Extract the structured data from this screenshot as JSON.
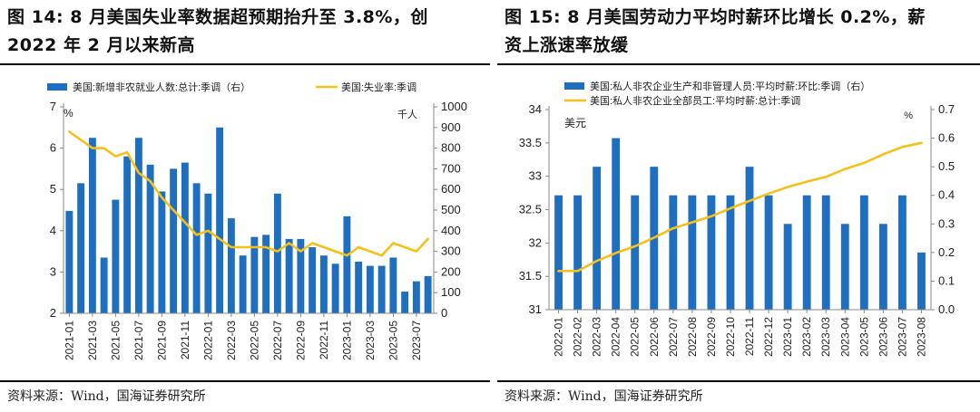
{
  "left": {
    "title_line1": "图 14: 8 月美国失业率数据超预期抬升至 3.8%，创",
    "title_line2": "2022 年 2 月以来新高",
    "source": "资料来源：Wind，国海证券研究所"
  },
  "right": {
    "title_line1": "图 15: 8 月美国劳动力平均时薪环比增长 0.2%，薪",
    "title_line2": "资上涨速率放缓",
    "source": "资料来源：Wind，国海证券研究所"
  },
  "chart_data": [
    {
      "type": "bar",
      "categories": [
        "2021-01",
        "2021-02",
        "2021-03",
        "2021-04",
        "2021-05",
        "2021-06",
        "2021-07",
        "2021-08",
        "2021-09",
        "2021-10",
        "2021-11",
        "2021-12",
        "2022-01",
        "2022-02",
        "2022-03",
        "2022-04",
        "2022-05",
        "2022-06",
        "2022-07",
        "2022-08",
        "2022-09",
        "2022-10",
        "2022-11",
        "2022-12",
        "2023-01",
        "2023-02",
        "2023-03",
        "2023-04",
        "2023-05",
        "2023-06",
        "2023-07",
        "2023-08"
      ],
      "x_tick_labels": [
        "2021-01",
        "2021-03",
        "2021-05",
        "2021-07",
        "2021-09",
        "2021-11",
        "2022-01",
        "2022-03",
        "2022-05",
        "2022-07",
        "2022-09",
        "2022-11",
        "2023-01",
        "2023-03",
        "2023-05",
        "2023-07"
      ],
      "series": [
        {
          "name": "美国:新增非农就业人数:总计:季调（右）",
          "type": "bar",
          "axis": "right",
          "color": "#1f6fc0",
          "values": [
            496,
            630,
            850,
            270,
            550,
            760,
            850,
            720,
            590,
            700,
            730,
            630,
            580,
            900,
            460,
            280,
            370,
            380,
            580,
            360,
            360,
            320,
            280,
            240,
            470,
            250,
            230,
            230,
            270,
            105,
            155,
            180
          ]
        },
        {
          "name": "美国:失业率:季调",
          "type": "line",
          "axis": "left",
          "color": "#f5c118",
          "values": [
            6.4,
            6.2,
            6.0,
            6.0,
            5.8,
            5.9,
            5.4,
            5.2,
            4.8,
            4.5,
            4.2,
            3.9,
            4.0,
            3.8,
            3.6,
            3.6,
            3.6,
            3.6,
            3.5,
            3.7,
            3.5,
            3.7,
            3.6,
            3.5,
            3.4,
            3.6,
            3.5,
            3.4,
            3.7,
            3.6,
            3.5,
            3.8
          ]
        }
      ],
      "y_left": {
        "min": 2,
        "max": 7,
        "ticks": [
          2,
          3,
          4,
          5,
          6,
          7
        ],
        "unit": "%"
      },
      "y_right": {
        "min": 0,
        "max": 1000,
        "ticks": [
          0,
          100,
          200,
          300,
          400,
          500,
          600,
          700,
          800,
          900,
          1000
        ],
        "unit": "千人"
      },
      "legend_position": "top"
    },
    {
      "type": "bar",
      "categories": [
        "2022-01",
        "2022-02",
        "2022-03",
        "2022-04",
        "2022-05",
        "2022-06",
        "2022-07",
        "2022-08",
        "2022-09",
        "2022-10",
        "2022-11",
        "2022-12",
        "2023-01",
        "2023-02",
        "2023-03",
        "2023-04",
        "2023-05",
        "2023-06",
        "2023-07",
        "2023-08"
      ],
      "x_tick_labels": [
        "2022-01",
        "2022-02",
        "2022-03",
        "2022-04",
        "2022-05",
        "2022-06",
        "2022-07",
        "2022-08",
        "2022-09",
        "2022-10",
        "2022-11",
        "2022-12",
        "2023-01",
        "2023-02",
        "2023-03",
        "2023-04",
        "2023-05",
        "2023-06",
        "2023-07",
        "2023-08"
      ],
      "series": [
        {
          "name": "美国:私人非农企业生产和非管理人员:平均时薪:环比:季调（右）",
          "type": "bar",
          "axis": "right",
          "color": "#1f6fc0",
          "values": [
            0.4,
            0.4,
            0.5,
            0.6,
            0.4,
            0.5,
            0.4,
            0.4,
            0.4,
            0.4,
            0.5,
            0.4,
            0.3,
            0.4,
            0.4,
            0.3,
            0.4,
            0.3,
            0.4,
            0.2
          ]
        },
        {
          "name": "美国:私人非农企业全部员工:平均时薪:总计:季调",
          "type": "line",
          "axis": "left",
          "color": "#f5c118",
          "values": [
            31.58,
            31.58,
            31.73,
            31.85,
            31.95,
            32.08,
            32.22,
            32.31,
            32.4,
            32.52,
            32.63,
            32.74,
            32.84,
            32.92,
            32.99,
            33.11,
            33.2,
            33.33,
            33.44,
            33.5
          ]
        }
      ],
      "y_left": {
        "min": 31,
        "max": 34,
        "ticks": [
          31,
          31.5,
          32,
          32.5,
          33,
          33.5,
          34
        ],
        "tick_labels": [
          "31",
          "31.5",
          "32",
          "32.5",
          "33",
          "33.5",
          "34"
        ],
        "unit": "美元"
      },
      "y_right": {
        "min": 0,
        "max": 0.7,
        "ticks": [
          0,
          0.1,
          0.2,
          0.3,
          0.4,
          0.5,
          0.6,
          0.7
        ],
        "tick_labels": [
          "0.0",
          "0.1",
          "0.2",
          "0.3",
          "0.4",
          "0.5",
          "0.6",
          "0.7"
        ],
        "unit": "%"
      },
      "legend_position": "top"
    }
  ]
}
